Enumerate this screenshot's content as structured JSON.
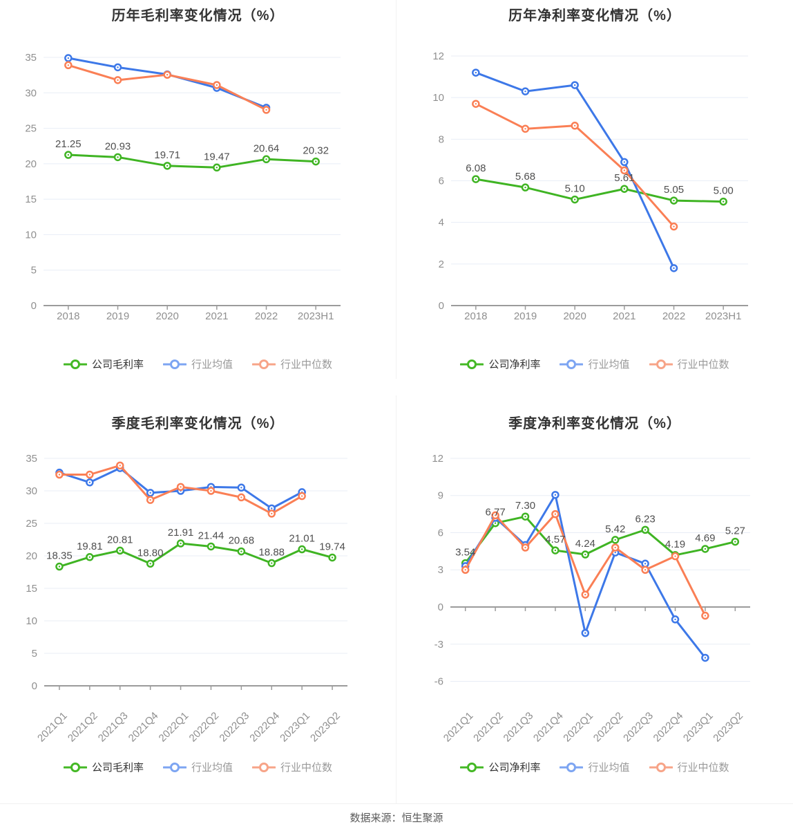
{
  "footer": {
    "source_note": "数据来源：恒生聚源"
  },
  "colors": {
    "company": "#3fb423",
    "industry_avg": "#3d78e8",
    "industry_median": "#fa7f55",
    "company_legend": "#44b825",
    "industry_avg_legend": "#7da5f2",
    "industry_median_legend": "#f7a488",
    "grid": "#e8edf6",
    "axis": "#9b9b9b",
    "tick_label": "#8f8f8f",
    "value_label": "#4f4f4f",
    "title": "#333333",
    "legend_label_primary": "#333333",
    "legend_label_secondary": "#999999"
  },
  "chart_data": [
    {
      "id": "annual-gross-margin",
      "type": "line",
      "title": "历年毛利率变化情况（%）",
      "categories": [
        "2018",
        "2019",
        "2020",
        "2021",
        "2022",
        "2023H1"
      ],
      "y_ticks": [
        0,
        5,
        10,
        15,
        20,
        25,
        30,
        35
      ],
      "ylim": [
        0,
        35
      ],
      "grid_on": true,
      "legend_position": "bottom",
      "series": [
        {
          "name": "公司毛利率",
          "color_key": "company",
          "show_labels": true,
          "values": [
            21.25,
            20.93,
            19.71,
            19.47,
            20.64,
            20.32
          ],
          "labels": [
            "21.25",
            "20.93",
            "19.71",
            "19.47",
            "20.64",
            "20.32"
          ]
        },
        {
          "name": "行业均值",
          "color_key": "industry_avg",
          "values": [
            34.9,
            33.6,
            32.6,
            30.7,
            27.9
          ]
        },
        {
          "name": "行业中位数",
          "color_key": "industry_median",
          "values": [
            33.9,
            31.8,
            32.55,
            31.1,
            27.6
          ]
        }
      ]
    },
    {
      "id": "annual-net-margin",
      "type": "line",
      "title": "历年净利率变化情况（%）",
      "categories": [
        "2018",
        "2019",
        "2020",
        "2021",
        "2022",
        "2023H1"
      ],
      "y_ticks": [
        0,
        2,
        4,
        6,
        8,
        10,
        12
      ],
      "ylim": [
        0,
        12
      ],
      "grid_on": true,
      "legend_position": "bottom",
      "series": [
        {
          "name": "公司净利率",
          "color_key": "company",
          "show_labels": true,
          "values": [
            6.08,
            5.68,
            5.1,
            5.61,
            5.05,
            5.0
          ],
          "labels": [
            "6.08",
            "5.68",
            "5.10",
            "5.61",
            "5.05",
            "5.00"
          ]
        },
        {
          "name": "行业均值",
          "color_key": "industry_avg",
          "values": [
            11.2,
            10.3,
            10.6,
            6.9,
            1.8
          ]
        },
        {
          "name": "行业中位数",
          "color_key": "industry_median",
          "values": [
            9.7,
            8.5,
            8.65,
            6.5,
            3.8
          ]
        }
      ]
    },
    {
      "id": "quarterly-gross-margin",
      "type": "line",
      "title": "季度毛利率变化情况（%）",
      "categories": [
        "2021Q1",
        "2021Q2",
        "2021Q3",
        "2021Q4",
        "2022Q1",
        "2022Q2",
        "2022Q3",
        "2022Q4",
        "2023Q1",
        "2023Q2"
      ],
      "y_ticks": [
        0,
        5,
        10,
        15,
        20,
        25,
        30,
        35
      ],
      "ylim": [
        0,
        35
      ],
      "grid_on": true,
      "legend_position": "bottom",
      "series": [
        {
          "name": "公司毛利率",
          "color_key": "company",
          "show_labels": true,
          "values": [
            18.35,
            19.81,
            20.81,
            18.8,
            21.91,
            21.44,
            20.68,
            18.88,
            21.01,
            19.74
          ],
          "labels": [
            "18.35",
            "19.81",
            "20.81",
            "18.80",
            "21.91",
            "21.44",
            "20.68",
            "18.88",
            "21.01",
            "19.74"
          ]
        },
        {
          "name": "行业均值",
          "color_key": "industry_avg",
          "values": [
            32.8,
            31.3,
            33.5,
            29.7,
            30.0,
            30.6,
            30.5,
            27.3,
            29.8
          ]
        },
        {
          "name": "行业中位数",
          "color_key": "industry_median",
          "values": [
            32.5,
            32.5,
            33.9,
            28.6,
            30.6,
            30.0,
            29.0,
            26.5,
            29.2
          ]
        }
      ]
    },
    {
      "id": "quarterly-net-margin",
      "type": "line",
      "title": "季度净利率变化情况（%）",
      "categories": [
        "2021Q1",
        "2021Q2",
        "2021Q3",
        "2021Q4",
        "2022Q1",
        "2022Q2",
        "2022Q3",
        "2022Q4",
        "2023Q1",
        "2023Q2"
      ],
      "y_ticks": [
        -6,
        -3,
        0,
        3,
        6,
        9,
        12
      ],
      "ylim": [
        -6,
        12
      ],
      "grid_on": true,
      "legend_position": "bottom",
      "series": [
        {
          "name": "公司净利率",
          "color_key": "company",
          "show_labels": true,
          "values": [
            3.54,
            6.77,
            7.3,
            4.57,
            4.24,
            5.42,
            6.23,
            4.19,
            4.69,
            5.27
          ],
          "labels": [
            "3.54",
            "6.77",
            "7.30",
            "4.57",
            "4.24",
            "5.42",
            "6.23",
            "4.19",
            "4.69",
            "5.27"
          ]
        },
        {
          "name": "行业均值",
          "color_key": "industry_avg",
          "values": [
            3.3,
            7.2,
            5.0,
            9.05,
            -2.1,
            4.4,
            3.5,
            -1.0,
            -4.1
          ]
        },
        {
          "name": "行业中位数",
          "color_key": "industry_median",
          "values": [
            3.0,
            7.4,
            4.8,
            7.5,
            1.0,
            4.8,
            3.0,
            4.1,
            -0.7
          ]
        }
      ]
    }
  ]
}
